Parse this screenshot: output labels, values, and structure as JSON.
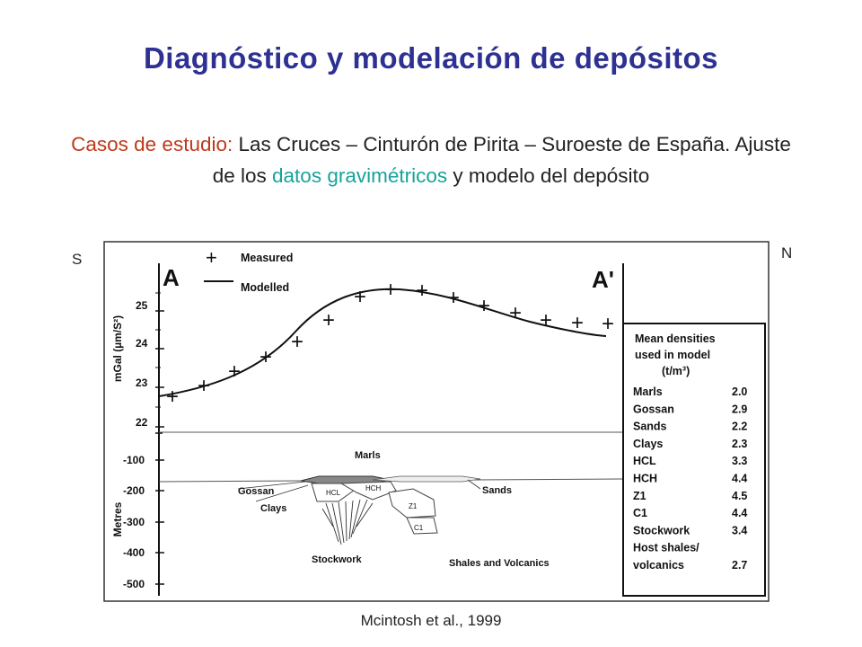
{
  "title": "Diagnóstico y modelación de depósitos",
  "subtitle": {
    "part1": "Casos de estudio:",
    "part2": " Las Cruces – Cinturón de Pirita – Suroeste de España. Ajuste de los ",
    "part3": "datos gravimétricos",
    "part4": " y modelo del depósito"
  },
  "compass": {
    "south": "S",
    "north": "N"
  },
  "citation": "Mcintosh et al., 1999",
  "colors": {
    "title": "#2e3192",
    "highlight_orange": "#c0391b",
    "highlight_teal": "#16a39a",
    "text": "#222222"
  },
  "figure": {
    "section_start": "A",
    "section_end": "A'",
    "legend": {
      "measured_symbol": "+",
      "measured": "Measured",
      "modelled": "Modelled"
    },
    "gravity_axis": {
      "label": "mGal (µm/S²)",
      "ticks": [
        "25",
        "24",
        "23",
        "22"
      ]
    },
    "depth_axis": {
      "label": "Metres",
      "ticks": [
        "-100",
        "-200",
        "-300",
        "-400",
        "-500"
      ]
    },
    "units": [
      "Marls",
      "Gossan",
      "Clays",
      "HCL",
      "HCH",
      "Z1",
      "C1",
      "Sands",
      "Stockwork",
      "Shales and Volcanics"
    ],
    "density_table": {
      "title_line1": "Mean densities",
      "title_line2": "used in model",
      "title_line3": "(t/m³)",
      "rows": [
        {
          "name": "Marls",
          "value": "2.0"
        },
        {
          "name": "Gossan",
          "value": "2.9"
        },
        {
          "name": "Sands",
          "value": "2.2"
        },
        {
          "name": "Clays",
          "value": "2.3"
        },
        {
          "name": "HCL",
          "value": "3.3"
        },
        {
          "name": "HCH",
          "value": "4.4"
        },
        {
          "name": "Z1",
          "value": "4.5"
        },
        {
          "name": "C1",
          "value": "4.4"
        },
        {
          "name": "Stockwork",
          "value": "3.4"
        },
        {
          "name": "Host shales/",
          "value": ""
        },
        {
          "name": "volcanics",
          "value": "2.7"
        }
      ]
    }
  }
}
